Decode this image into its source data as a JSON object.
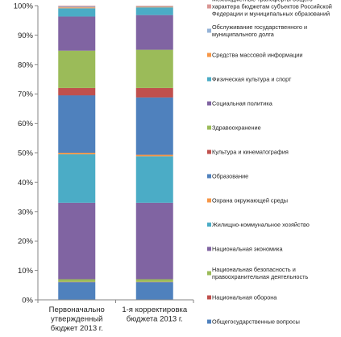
{
  "chart_data": {
    "type": "bar",
    "stacked": true,
    "percent_stacked": true,
    "title": "",
    "xlabel": "",
    "ylabel": "",
    "ylim": [
      0,
      100
    ],
    "yticks": [
      "0%",
      "10%",
      "20%",
      "30%",
      "40%",
      "50%",
      "60%",
      "70%",
      "80%",
      "90%",
      "100%"
    ],
    "grid": false,
    "legend_position": "right",
    "categories": [
      [
        "Первоначально",
        "утвержденный",
        "бюджет 2013 г."
      ],
      [
        "1-я корректировка",
        "бюджета 2013 г."
      ]
    ],
    "series": [
      {
        "name": [
          "Общегосударственные вопросы"
        ],
        "color": "#4f81bd",
        "values": [
          6.0,
          6.0
        ]
      },
      {
        "name": [
          "Национальная оборона"
        ],
        "color": "#c0504d",
        "values": [
          0.1,
          0.1
        ]
      },
      {
        "name": [
          "Национальная безопасность и",
          "правоохранительная деятельность"
        ],
        "color": "#9bbb59",
        "values": [
          0.9,
          0.9
        ]
      },
      {
        "name": [
          "Национальная экономика"
        ],
        "color": "#8064a2",
        "values": [
          26.0,
          26.0
        ]
      },
      {
        "name": [
          "Жилищно-коммунальное хозяйство"
        ],
        "color": "#4bacc6",
        "values": [
          16.5,
          15.8
        ]
      },
      {
        "name": [
          "Охрана окружающей среды"
        ],
        "color": "#f79646",
        "values": [
          0.5,
          0.5
        ]
      },
      {
        "name": [
          "Образование"
        ],
        "color": "#4f81bd",
        "values": [
          19.5,
          19.5
        ]
      },
      {
        "name": [
          "Культура и кинематография"
        ],
        "color": "#c0504d",
        "values": [
          2.5,
          3.2
        ]
      },
      {
        "name": [
          "Здравоохранение"
        ],
        "color": "#9bbb59",
        "values": [
          12.7,
          13.0
        ]
      },
      {
        "name": [
          "Социальная политика"
        ],
        "color": "#8064a2",
        "values": [
          11.6,
          11.8
        ]
      },
      {
        "name": [
          "Физическая культура и спорт"
        ],
        "color": "#4bacc6",
        "values": [
          2.8,
          2.6
        ]
      },
      {
        "name": [
          "Средства массовой информации"
        ],
        "color": "#f79646",
        "values": [
          0.3,
          0.2
        ]
      },
      {
        "name": [
          "Обслуживание государственного и",
          "муниципального долга"
        ],
        "color": "#95b3d7",
        "values": [
          0.3,
          0.2
        ]
      },
      {
        "name": [
          "Межбюджетные трансферты общего",
          "характера бюджетам субъектов Российской",
          "Федерации и муниципальных образований"
        ],
        "color": "#d99694",
        "values": [
          0.3,
          0.2
        ]
      }
    ]
  }
}
